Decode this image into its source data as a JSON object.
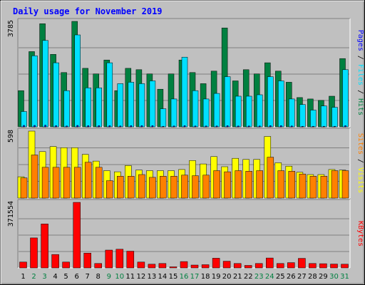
{
  "chart_data": [
    {
      "type": "bar",
      "title": "Daily usage for November 2019",
      "panel": "pages-files-hits",
      "ymax_label": "3785",
      "legend_right": [
        "Hits",
        "Files",
        "Pages"
      ],
      "legend_separator": " / ",
      "categories": [
        "1",
        "2",
        "3",
        "4",
        "5",
        "6",
        "7",
        "8",
        "9",
        "10",
        "11",
        "12",
        "13",
        "14",
        "15",
        "16",
        "17",
        "18",
        "19",
        "20",
        "21",
        "22",
        "23",
        "24",
        "25",
        "26",
        "27",
        "28",
        "29",
        "30",
        "31"
      ],
      "series": [
        {
          "name": "Hits",
          "color": "#008040",
          "values": [
            1300,
            2700,
            3700,
            2600,
            1950,
            3785,
            2100,
            1900,
            2400,
            1300,
            2100,
            2050,
            1900,
            1350,
            1900,
            2400,
            1950,
            1550,
            2000,
            3550,
            1650,
            2050,
            1900,
            2300,
            2000,
            1600,
            1050,
            1000,
            950,
            1100,
            2450
          ]
        },
        {
          "name": "Files",
          "color": "#00E0FF",
          "values": [
            550,
            2550,
            3100,
            2300,
            1300,
            3300,
            1400,
            1400,
            2300,
            1550,
            1600,
            1550,
            1650,
            650,
            1000,
            2500,
            1300,
            1000,
            1200,
            1800,
            1100,
            1100,
            1150,
            1800,
            1650,
            1000,
            800,
            600,
            750,
            700,
            2050
          ]
        },
        {
          "name": "Pages",
          "color": "#0000FF",
          "values": [
            50,
            50,
            60,
            40,
            30,
            50,
            40,
            40,
            40,
            30,
            40,
            40,
            40,
            20,
            30,
            40,
            30,
            30,
            30,
            40,
            30,
            30,
            30,
            40,
            40,
            30,
            20,
            20,
            20,
            20,
            40
          ]
        }
      ]
    },
    {
      "type": "bar",
      "panel": "visits-sites",
      "ymax_label": "598",
      "legend_right": [
        "Visits",
        "Sites"
      ],
      "legend_separator": " / ",
      "categories": [
        "1",
        "2",
        "3",
        "4",
        "5",
        "6",
        "7",
        "8",
        "9",
        "10",
        "11",
        "12",
        "13",
        "14",
        "15",
        "16",
        "17",
        "18",
        "19",
        "20",
        "21",
        "22",
        "23",
        "24",
        "25",
        "26",
        "27",
        "28",
        "29",
        "30",
        "31"
      ],
      "series": [
        {
          "name": "Visits",
          "color": "#FFFF00",
          "values": [
            190,
            598,
            415,
            460,
            450,
            450,
            390,
            330,
            245,
            235,
            290,
            250,
            245,
            245,
            245,
            255,
            335,
            305,
            370,
            280,
            355,
            345,
            345,
            550,
            315,
            285,
            230,
            210,
            210,
            255,
            250
          ]
        },
        {
          "name": "Sites",
          "color": "#FF8000",
          "values": [
            180,
            385,
            275,
            275,
            275,
            275,
            320,
            275,
            155,
            195,
            195,
            210,
            185,
            195,
            195,
            205,
            200,
            205,
            245,
            235,
            245,
            240,
            245,
            365,
            245,
            240,
            215,
            195,
            195,
            245,
            245
          ]
        }
      ]
    },
    {
      "type": "bar",
      "panel": "kbytes",
      "ymax_label": "371554",
      "legend_right": [
        "KBytes"
      ],
      "categories": [
        "1",
        "2",
        "3",
        "4",
        "5",
        "6",
        "7",
        "8",
        "9",
        "10",
        "11",
        "12",
        "13",
        "14",
        "15",
        "16",
        "17",
        "18",
        "19",
        "20",
        "21",
        "22",
        "23",
        "24",
        "25",
        "26",
        "27",
        "28",
        "29",
        "30",
        "31"
      ],
      "series": [
        {
          "name": "KBytes",
          "color": "#FF0000",
          "values": [
            33000,
            170000,
            249000,
            76000,
            33000,
            371554,
            84000,
            25000,
            101000,
            106000,
            95000,
            33000,
            21000,
            25000,
            6000,
            36000,
            16000,
            18000,
            55000,
            38000,
            25000,
            14000,
            25000,
            56000,
            25000,
            30000,
            54000,
            25000,
            24000,
            22000,
            21000
          ]
        }
      ]
    }
  ],
  "axis": {
    "day_labels": [
      "1",
      "2",
      "3",
      "4",
      "5",
      "6",
      "7",
      "8",
      "9",
      "10",
      "11",
      "12",
      "13",
      "14",
      "15",
      "16",
      "17",
      "18",
      "19",
      "20",
      "21",
      "22",
      "23",
      "24",
      "25",
      "26",
      "27",
      "28",
      "29",
      "30",
      "31"
    ],
    "weekend_days": [
      "2",
      "3",
      "9",
      "10",
      "16",
      "17",
      "23",
      "24",
      "30",
      "31"
    ],
    "weekday_color": "#000000",
    "weekend_color": "#008040"
  },
  "colors": {
    "background": "#C0C0C0",
    "panel_bg": "#C0C0C0",
    "title_color": "#0000FF",
    "gridline": "#808080"
  }
}
